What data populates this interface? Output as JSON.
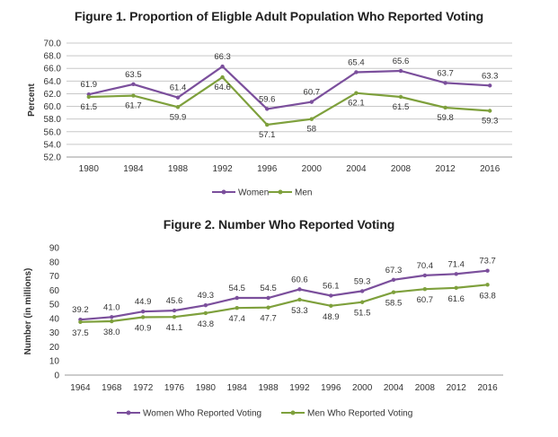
{
  "chart_data": [
    {
      "type": "line",
      "title": "Figure 1. Proportion of Eligble Adult Population Who Reported Voting",
      "xlabel": "",
      "ylabel": "Percent",
      "ylim": [
        52.0,
        70.0
      ],
      "yticks": [
        "52.0",
        "54.0",
        "56.0",
        "58.0",
        "60.0",
        "62.0",
        "64.0",
        "66.0",
        "68.0",
        "70.0"
      ],
      "categories": [
        "1980",
        "1984",
        "1988",
        "1992",
        "1996",
        "2000",
        "2004",
        "2008",
        "2012",
        "2016"
      ],
      "grid": "horizontal",
      "legend_position": "bottom",
      "series": [
        {
          "name": "Women",
          "color": "#7b4f9c",
          "values": [
            61.9,
            63.5,
            61.4,
            66.3,
            59.6,
            60.7,
            65.4,
            65.6,
            63.7,
            63.3
          ],
          "labels": [
            "61.9",
            "63.5",
            "61.4",
            "66.3",
            "59.6",
            "60.7",
            "65.4",
            "65.6",
            "63.7",
            "63.3"
          ]
        },
        {
          "name": "Men",
          "color": "#7ea03c",
          "values": [
            61.5,
            61.7,
            59.9,
            64.6,
            57.1,
            58.0,
            62.1,
            61.5,
            59.8,
            59.3
          ],
          "labels": [
            "61.5",
            "61.7",
            "59.9",
            "64.6",
            "57.1",
            "58",
            "62.1",
            "61.5",
            "59.8",
            "59.3"
          ]
        }
      ]
    },
    {
      "type": "line",
      "title": "Figure 2. Number Who Reported Voting",
      "xlabel": "",
      "ylabel": "Number (in millions)",
      "ylim": [
        0,
        90
      ],
      "yticks": [
        "0",
        "10",
        "20",
        "30",
        "40",
        "50",
        "60",
        "70",
        "80",
        "90"
      ],
      "categories": [
        "1964",
        "1968",
        "1972",
        "1976",
        "1980",
        "1984",
        "1988",
        "1992",
        "1996",
        "2000",
        "2004",
        "2008",
        "2012",
        "2016"
      ],
      "grid": "none",
      "legend_position": "bottom",
      "series": [
        {
          "name": "Women Who Reported Voting",
          "color": "#7b4f9c",
          "values": [
            39.2,
            41.0,
            44.9,
            45.6,
            49.3,
            54.5,
            54.5,
            60.6,
            56.1,
            59.3,
            67.3,
            70.4,
            71.4,
            73.7
          ],
          "labels": [
            "39.2",
            "41.0",
            "44.9",
            "45.6",
            "49.3",
            "54.5",
            "54.5",
            "60.6",
            "56.1",
            "59.3",
            "67.3",
            "70.4",
            "71.4",
            "73.7"
          ]
        },
        {
          "name": "Men Who Reported Voting",
          "color": "#7ea03c",
          "values": [
            37.5,
            38.0,
            40.9,
            41.1,
            43.8,
            47.4,
            47.7,
            53.3,
            48.9,
            51.5,
            58.5,
            60.7,
            61.6,
            63.8
          ],
          "labels": [
            "37.5",
            "38.0",
            "40.9",
            "41.1",
            "43.8",
            "47.4",
            "47.7",
            "53.3",
            "48.9",
            "51.5",
            "58.5",
            "60.7",
            "61.6",
            "63.8"
          ]
        }
      ]
    }
  ]
}
